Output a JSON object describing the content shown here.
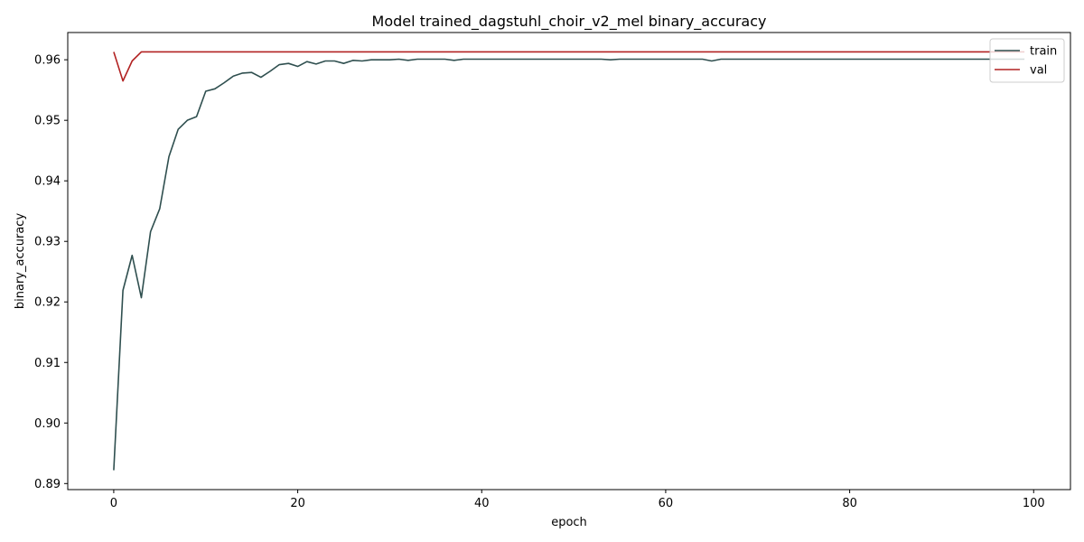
{
  "chart_data": {
    "type": "line",
    "title": "Model trained_dagstuhl_choir_v2_mel binary_accuracy",
    "xlabel": "epoch",
    "ylabel": "binary_accuracy",
    "xlim": [
      -5,
      104
    ],
    "ylim": [
      0.889,
      0.9645
    ],
    "xticks": [
      0,
      20,
      40,
      60,
      80,
      100
    ],
    "yticks": [
      0.89,
      0.9,
      0.91,
      0.92,
      0.93,
      0.94,
      0.95,
      0.96
    ],
    "grid": false,
    "legend_position": "top-right",
    "series": [
      {
        "name": "train",
        "color": "#2f4f4f",
        "x": [
          0,
          1,
          2,
          3,
          4,
          5,
          6,
          7,
          8,
          9,
          10,
          11,
          12,
          13,
          14,
          15,
          16,
          17,
          18,
          19,
          20,
          21,
          22,
          23,
          24,
          25,
          26,
          27,
          28,
          29,
          30,
          31,
          32,
          33,
          34,
          35,
          36,
          37,
          38,
          39,
          40,
          41,
          42,
          43,
          44,
          45,
          46,
          47,
          48,
          49,
          50,
          51,
          52,
          53,
          54,
          55,
          56,
          57,
          58,
          59,
          60,
          61,
          62,
          63,
          64,
          65,
          66,
          67,
          68,
          69,
          70,
          71,
          72,
          73,
          74,
          75,
          76,
          77,
          78,
          79,
          80,
          81,
          82,
          83,
          84,
          85,
          86,
          87,
          88,
          89,
          90,
          91,
          92,
          93,
          94,
          95,
          96,
          97,
          98,
          99
        ],
        "values": [
          0.8922,
          0.9219,
          0.9277,
          0.9207,
          0.9316,
          0.9354,
          0.944,
          0.9485,
          0.95,
          0.9506,
          0.9548,
          0.9552,
          0.9562,
          0.9573,
          0.9578,
          0.9579,
          0.9571,
          0.9581,
          0.9592,
          0.9594,
          0.9589,
          0.9597,
          0.9593,
          0.9598,
          0.9598,
          0.9594,
          0.9599,
          0.9598,
          0.96,
          0.96,
          0.96,
          0.9601,
          0.9599,
          0.9601,
          0.9601,
          0.9601,
          0.9601,
          0.9599,
          0.9601,
          0.9601,
          0.9601,
          0.9601,
          0.9601,
          0.9601,
          0.9601,
          0.9601,
          0.9601,
          0.9601,
          0.9601,
          0.9601,
          0.9601,
          0.9601,
          0.9601,
          0.9601,
          0.96,
          0.9601,
          0.9601,
          0.9601,
          0.9601,
          0.9601,
          0.9601,
          0.9601,
          0.9601,
          0.9601,
          0.9601,
          0.9598,
          0.9601,
          0.9601,
          0.9601,
          0.9601,
          0.9601,
          0.9601,
          0.9601,
          0.9601,
          0.9601,
          0.9601,
          0.9601,
          0.9601,
          0.9601,
          0.9601,
          0.9601,
          0.9601,
          0.9601,
          0.9601,
          0.9601,
          0.9601,
          0.9601,
          0.9601,
          0.9601,
          0.9601,
          0.9601,
          0.9601,
          0.9601,
          0.9601,
          0.9601,
          0.9601,
          0.9601,
          0.9601,
          0.9601,
          0.9601
        ]
      },
      {
        "name": "val",
        "color": "#b22222",
        "x": [
          0,
          1,
          2,
          3,
          4,
          5,
          6,
          7,
          8,
          9,
          10,
          11,
          12,
          13,
          14,
          15,
          16,
          17,
          18,
          19,
          20,
          21,
          22,
          23,
          24,
          25,
          26,
          27,
          28,
          29,
          30,
          31,
          32,
          33,
          34,
          35,
          36,
          37,
          38,
          39,
          40,
          41,
          42,
          43,
          44,
          45,
          46,
          47,
          48,
          49,
          50,
          51,
          52,
          53,
          54,
          55,
          56,
          57,
          58,
          59,
          60,
          61,
          62,
          63,
          64,
          65,
          66,
          67,
          68,
          69,
          70,
          71,
          72,
          73,
          74,
          75,
          76,
          77,
          78,
          79,
          80,
          81,
          82,
          83,
          84,
          85,
          86,
          87,
          88,
          89,
          90,
          91,
          92,
          93,
          94,
          95,
          96,
          97,
          98,
          99
        ],
        "values": [
          0.9613,
          0.9565,
          0.9598,
          0.9613,
          0.9613,
          0.9613,
          0.9613,
          0.9613,
          0.9613,
          0.9613,
          0.9613,
          0.9613,
          0.9613,
          0.9613,
          0.9613,
          0.9613,
          0.9613,
          0.9613,
          0.9613,
          0.9613,
          0.9613,
          0.9613,
          0.9613,
          0.9613,
          0.9613,
          0.9613,
          0.9613,
          0.9613,
          0.9613,
          0.9613,
          0.9613,
          0.9613,
          0.9613,
          0.9613,
          0.9613,
          0.9613,
          0.9613,
          0.9613,
          0.9613,
          0.9613,
          0.9613,
          0.9613,
          0.9613,
          0.9613,
          0.9613,
          0.9613,
          0.9613,
          0.9613,
          0.9613,
          0.9613,
          0.9613,
          0.9613,
          0.9613,
          0.9613,
          0.9613,
          0.9613,
          0.9613,
          0.9613,
          0.9613,
          0.9613,
          0.9613,
          0.9613,
          0.9613,
          0.9613,
          0.9613,
          0.9613,
          0.9613,
          0.9613,
          0.9613,
          0.9613,
          0.9613,
          0.9613,
          0.9613,
          0.9613,
          0.9613,
          0.9613,
          0.9613,
          0.9613,
          0.9613,
          0.9613,
          0.9613,
          0.9613,
          0.9613,
          0.9613,
          0.9613,
          0.9613,
          0.9613,
          0.9613,
          0.9613,
          0.9613,
          0.9613,
          0.9613,
          0.9613,
          0.9613,
          0.9613,
          0.9613,
          0.9613,
          0.9613,
          0.9613,
          0.9613
        ]
      }
    ]
  }
}
